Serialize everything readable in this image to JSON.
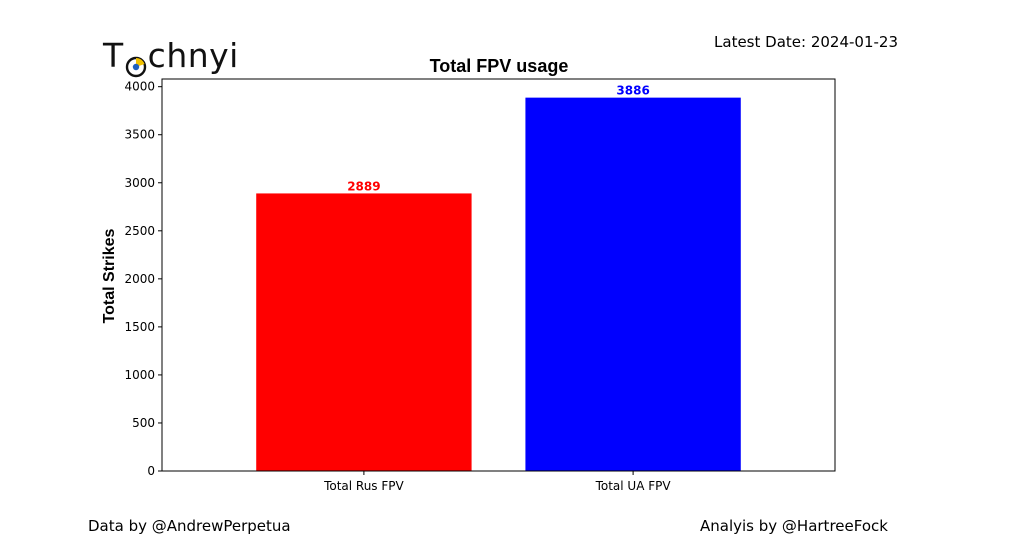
{
  "logo": {
    "text_before": "T",
    "text_after": "chnyi"
  },
  "latest_date": "Latest Date: 2024-01-23",
  "footer": {
    "data_by": "Data by @AndrewPerpetua",
    "analysis_by": "Analyis by @HartreeFock"
  },
  "chart_data": {
    "type": "bar",
    "title": "Total FPV usage",
    "xlabel": "",
    "ylabel": "Total Strikes",
    "categories": [
      "Total Rus FPV",
      "Total UA FPV"
    ],
    "values": [
      2889,
      3886
    ],
    "bar_colors": [
      "#ff0000",
      "#0000ff"
    ],
    "label_colors": [
      "#ff0000",
      "#0000ff"
    ],
    "ylim": [
      0,
      4080
    ],
    "yticks": [
      0,
      500,
      1000,
      1500,
      2000,
      2500,
      3000,
      3500,
      4000
    ],
    "grid": false,
    "legend": "none"
  }
}
